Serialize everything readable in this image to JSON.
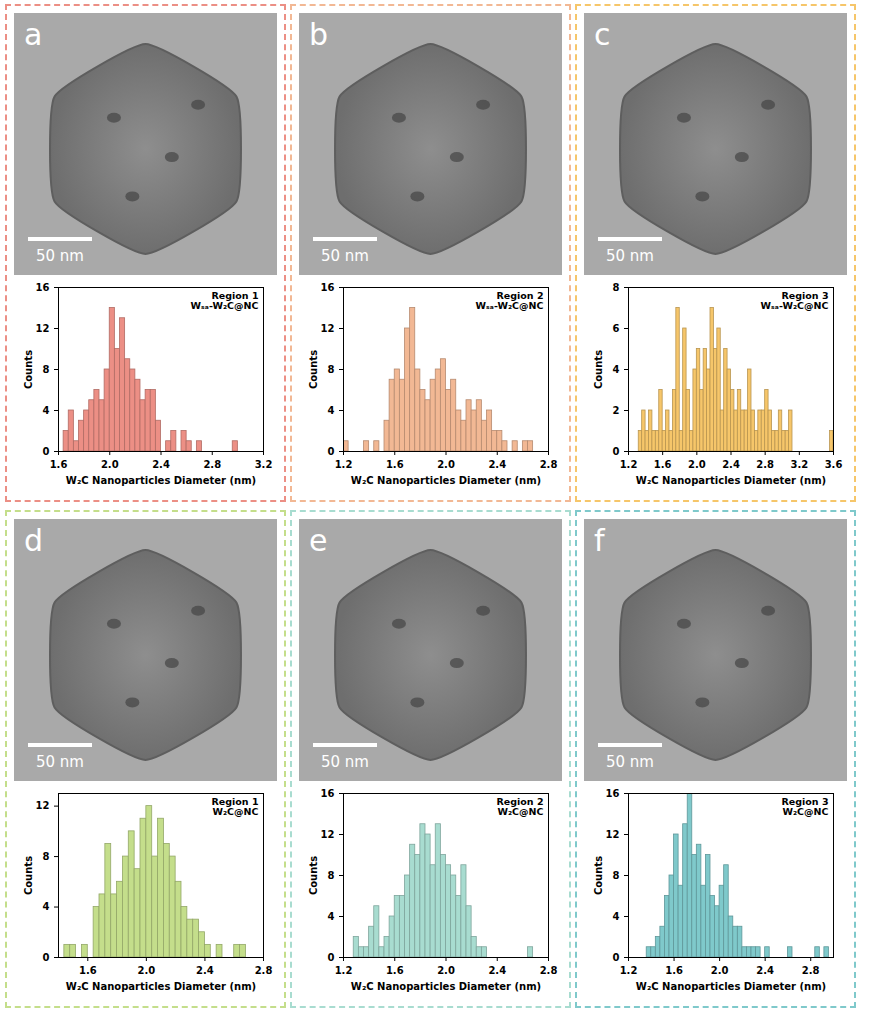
{
  "chart_data": [
    {
      "type": "histogram",
      "panel_label": "a",
      "scale_bar": "50 nm",
      "title": "Region 1",
      "subtitle": "Wₛₐ-W₂C@NC",
      "x_label": "W₂C Nanoparticles Diameter (nm)",
      "y_label": "Counts",
      "color": "#ec8f85",
      "bins": [
        1.64,
        1.68,
        1.72,
        1.76,
        1.8,
        1.84,
        1.88,
        1.92,
        1.96,
        2,
        2.04,
        2.08,
        2.12,
        2.16,
        2.2,
        2.24,
        2.28,
        2.32,
        2.36,
        2.4,
        2.44,
        2.48,
        2.52,
        2.56,
        2.6,
        2.64,
        2.68,
        2.72,
        2.76,
        2.8,
        2.84,
        2.88,
        2.92,
        2.96,
        3
      ],
      "counts": [
        2,
        4,
        1,
        3,
        4,
        5,
        6,
        5,
        8,
        14,
        10,
        13,
        9,
        8,
        7,
        5,
        6,
        6,
        3,
        0,
        1,
        2,
        0,
        2,
        1,
        0,
        1,
        0,
        0,
        0,
        0,
        0,
        0,
        1
      ],
      "xlim": [
        1.6,
        3.2
      ],
      "xticks": [
        1.6,
        {
          "value": 2,
          "label": "2.0"
        },
        2.4,
        2.8,
        3.2
      ],
      "ylim": [
        0,
        16
      ],
      "yticks": [
        0,
        4,
        8,
        12,
        16
      ]
    },
    {
      "type": "histogram",
      "panel_label": "b",
      "scale_bar": "50 nm",
      "title": "Region 2",
      "subtitle": "Wₛₐ-W₂C@NC",
      "x_label": "W₂C Nanoparticles Diameter (nm)",
      "y_label": "Counts",
      "color": "#f2b894",
      "bins": [
        1.2,
        1.24,
        1.28,
        1.32,
        1.36,
        1.4,
        1.44,
        1.48,
        1.52,
        1.56,
        1.6,
        1.64,
        1.68,
        1.72,
        1.76,
        1.8,
        1.84,
        1.88,
        1.92,
        1.96,
        2,
        2.04,
        2.08,
        2.12,
        2.16,
        2.2,
        2.24,
        2.28,
        2.32,
        2.36,
        2.4,
        2.44,
        2.48,
        2.52,
        2.56,
        2.6,
        2.64,
        2.68
      ],
      "counts": [
        1,
        0,
        0,
        0,
        1,
        0,
        1,
        0,
        3,
        7,
        8,
        7,
        12,
        14,
        8,
        6,
        5,
        7,
        8,
        9,
        6,
        7,
        4,
        3,
        5,
        4,
        5,
        3,
        4,
        2,
        2,
        1,
        0,
        1,
        0,
        1,
        1
      ],
      "xlim": [
        1.2,
        2.8
      ],
      "xticks": [
        1.2,
        1.6,
        {
          "value": 2,
          "label": "2.0"
        },
        2.4,
        2.8
      ],
      "ylim": [
        0,
        16
      ],
      "yticks": [
        0,
        4,
        8,
        12,
        16
      ]
    },
    {
      "type": "histogram",
      "panel_label": "c",
      "scale_bar": "50 nm",
      "title": "Region 3",
      "subtitle": "Wₛₐ-W₂C@NC",
      "x_label": "W₂C Nanoparticles Diameter (nm)",
      "y_label": "Counts",
      "color": "#f6c66a",
      "bins": [
        1.32,
        1.36,
        1.4,
        1.44,
        1.48,
        1.52,
        1.56,
        1.6,
        1.64,
        1.68,
        1.72,
        1.76,
        1.8,
        1.84,
        1.88,
        1.92,
        1.96,
        2,
        2.04,
        2.08,
        2.12,
        2.16,
        2.2,
        2.24,
        2.28,
        2.32,
        2.36,
        2.4,
        2.44,
        2.48,
        2.52,
        2.56,
        2.6,
        2.64,
        2.68,
        2.72,
        2.76,
        2.8,
        2.84,
        2.88,
        2.92,
        2.96,
        3,
        3.04,
        3.08,
        3.12,
        3.16,
        3.2,
        3.24,
        3.28,
        3.32,
        3.36,
        3.4,
        3.44,
        3.48,
        3.52,
        3.56,
        3.6
      ],
      "counts": [
        1,
        2,
        1,
        2,
        1,
        1,
        3,
        1,
        2,
        1,
        3,
        7,
        1,
        6,
        3,
        1,
        4,
        5,
        3,
        5,
        4,
        7,
        5,
        6,
        2,
        5,
        4,
        3,
        2,
        3,
        2,
        2,
        4,
        2,
        1,
        2,
        2,
        3,
        2,
        1,
        1,
        2,
        1,
        1,
        2,
        0,
        0,
        0,
        0,
        0,
        0,
        0,
        0,
        0,
        0,
        0,
        1
      ],
      "xlim": [
        1.2,
        3.6
      ],
      "xticks": [
        1.2,
        1.6,
        {
          "value": 2,
          "label": "2.0"
        },
        2.4,
        2.8,
        3.2,
        3.6
      ],
      "ylim": [
        0,
        8
      ],
      "yticks": [
        0,
        2,
        4,
        6,
        8
      ]
    },
    {
      "type": "histogram",
      "panel_label": "d",
      "scale_bar": "50 nm",
      "title": "Region 1",
      "subtitle": "W₂C@NC",
      "x_label": "W₂C Nanoparticles Diameter (nm)",
      "y_label": "Counts",
      "color": "#c4de8b",
      "bins": [
        1.44,
        1.48,
        1.52,
        1.56,
        1.6,
        1.64,
        1.68,
        1.72,
        1.76,
        1.8,
        1.84,
        1.88,
        1.92,
        1.96,
        2,
        2.04,
        2.08,
        2.12,
        2.16,
        2.2,
        2.24,
        2.28,
        2.32,
        2.36,
        2.4,
        2.44,
        2.48,
        2.52,
        2.56,
        2.6,
        2.64,
        2.68
      ],
      "counts": [
        1,
        1,
        0,
        1,
        0,
        4,
        5,
        9,
        5,
        6,
        8,
        10,
        7,
        11,
        12,
        8,
        11,
        9,
        8,
        6,
        4,
        3,
        3,
        2,
        1,
        0,
        1,
        0,
        0,
        1,
        1
      ],
      "xlim": [
        1.4,
        2.8
      ],
      "xticks": [
        1.6,
        {
          "value": 2,
          "label": "2.0"
        },
        2.4,
        2.8
      ],
      "ylim": [
        0,
        13
      ],
      "yticks": [
        0,
        4,
        8,
        12
      ]
    },
    {
      "type": "histogram",
      "panel_label": "e",
      "scale_bar": "50 nm",
      "title": "Region 2",
      "subtitle": "W₂C@NC",
      "x_label": "W₂C Nanoparticles Diameter (nm)",
      "y_label": "Counts",
      "color": "#a8dcd0",
      "bins": [
        1.28,
        1.32,
        1.36,
        1.4,
        1.44,
        1.48,
        1.52,
        1.56,
        1.6,
        1.64,
        1.68,
        1.72,
        1.76,
        1.8,
        1.84,
        1.88,
        1.92,
        1.96,
        2,
        2.04,
        2.08,
        2.12,
        2.16,
        2.2,
        2.24,
        2.28,
        2.32,
        2.36,
        2.4,
        2.44,
        2.48,
        2.52,
        2.56,
        2.6,
        2.64,
        2.68
      ],
      "counts": [
        2,
        1,
        1,
        3,
        5,
        1,
        2,
        4,
        6,
        6,
        8,
        11,
        10,
        13,
        12,
        9,
        13,
        10,
        9,
        8,
        6,
        9,
        5,
        2,
        1,
        1,
        0,
        0,
        0,
        0,
        0,
        0,
        0,
        0,
        1
      ],
      "xlim": [
        1.2,
        2.8
      ],
      "xticks": [
        1.2,
        1.6,
        {
          "value": 2,
          "label": "2.0"
        },
        2.4,
        2.8
      ],
      "ylim": [
        0,
        16
      ],
      "yticks": [
        0,
        4,
        8,
        12,
        16
      ]
    },
    {
      "type": "histogram",
      "panel_label": "f",
      "scale_bar": "50 nm",
      "title": "Region 3",
      "subtitle": "W₂C@NC",
      "x_label": "W₂C Nanoparticles Diameter (nm)",
      "y_label": "Counts",
      "color": "#7fc9cb",
      "bins": [
        1.36,
        1.4,
        1.44,
        1.48,
        1.52,
        1.56,
        1.6,
        1.64,
        1.68,
        1.72,
        1.76,
        1.8,
        1.84,
        1.88,
        1.92,
        1.96,
        2,
        2.04,
        2.08,
        2.12,
        2.16,
        2.2,
        2.24,
        2.28,
        2.32,
        2.36,
        2.4,
        2.44,
        2.48,
        2.52,
        2.56,
        2.6,
        2.64,
        2.68,
        2.72,
        2.76,
        2.8,
        2.84,
        2.88,
        2.92,
        2.96
      ],
      "counts": [
        1,
        1,
        2,
        3,
        6,
        8,
        12,
        7,
        13,
        16,
        10,
        11,
        7,
        10,
        6,
        5,
        7,
        9,
        4,
        3,
        3,
        1,
        1,
        1,
        1,
        0,
        1,
        0,
        0,
        0,
        0,
        1,
        0,
        0,
        0,
        0,
        0,
        1,
        0,
        1
      ],
      "xlim": [
        1.2,
        3
      ],
      "xticks": [
        1.2,
        1.6,
        {
          "value": 2,
          "label": "2.0"
        },
        2.4,
        2.8
      ],
      "ylim": [
        0,
        16
      ],
      "yticks": [
        0,
        4,
        8,
        12,
        16
      ]
    }
  ]
}
